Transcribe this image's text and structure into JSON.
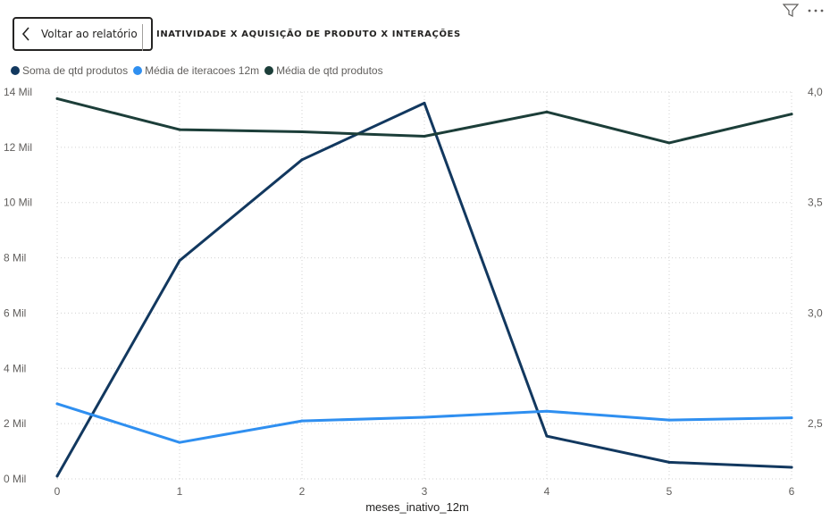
{
  "header": {
    "back_label": "Voltar ao relatório",
    "title": "INATIVIDADE X AQUISIÇÃO DE PRODUTO X INTERAÇÕES"
  },
  "icons": {
    "back": "chevron-left-icon",
    "filter": "filter-icon",
    "more": "more-options-icon"
  },
  "chart_data": {
    "type": "line",
    "xlabel": "meses_inativo_12m",
    "x": [
      0,
      1,
      2,
      3,
      4,
      5,
      6
    ],
    "x_tick_labels": [
      "0",
      "1",
      "2",
      "3",
      "4",
      "5",
      "6"
    ],
    "y_left": {
      "range": [
        0,
        14000
      ],
      "ticks": [
        0,
        2000,
        4000,
        6000,
        8000,
        10000,
        12000,
        14000
      ],
      "tick_labels": [
        "0 Mil",
        "2 Mil",
        "4 Mil",
        "6 Mil",
        "8 Mil",
        "10 Mil",
        "12 Mil",
        "14 Mil"
      ]
    },
    "y_right": {
      "range": [
        2.25,
        4.0
      ],
      "ticks": [
        2.5,
        3.0,
        3.5,
        4.0
      ],
      "tick_labels": [
        "2,5",
        "3,0",
        "3,5",
        "4,0"
      ]
    },
    "grid": "dotted",
    "legend_position": "top-left",
    "series": [
      {
        "name": "Soma de qtd produtos",
        "axis": "left",
        "color": "#12385f",
        "values": [
          100,
          7900,
          11550,
          13600,
          1550,
          600,
          420
        ]
      },
      {
        "name": "Média de iteracoes 12m",
        "axis": "left",
        "color": "#2f8ff0",
        "values": [
          2720,
          1320,
          2100,
          2230,
          2450,
          2130,
          2210
        ]
      },
      {
        "name": "Média de qtd produtos",
        "axis": "right",
        "color": "#1c3e39",
        "values": [
          3.97,
          3.83,
          3.82,
          3.8,
          3.91,
          3.77,
          3.9
        ]
      }
    ]
  }
}
